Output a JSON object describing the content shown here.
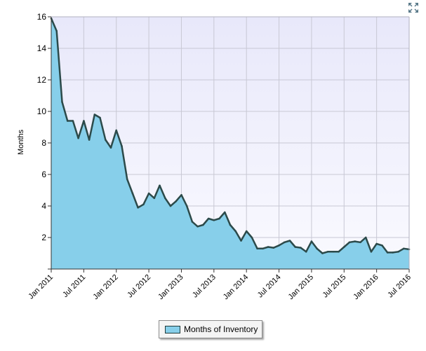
{
  "chart_data": {
    "type": "area",
    "title": "",
    "xlabel": "",
    "ylabel": "Months",
    "ylim": [
      0,
      16
    ],
    "yticks": [
      2,
      4,
      6,
      8,
      10,
      12,
      14,
      16
    ],
    "xticks": [
      "Jan 2011",
      "Jul 2011",
      "Jan 2012",
      "Jul 2012",
      "Jan 2013",
      "Jul 2013",
      "Jan 2014",
      "Jul 2014",
      "Jan 2015",
      "Jul 2015",
      "Jan 2016",
      "Jul 2016"
    ],
    "grid": true,
    "legend_position": "bottom-center",
    "series": [
      {
        "name": "Months of Inventory",
        "color": "#87cfea",
        "line_color": "#2c4a4a",
        "x": [
          "2011-01",
          "2011-02",
          "2011-03",
          "2011-04",
          "2011-05",
          "2011-06",
          "2011-07",
          "2011-08",
          "2011-09",
          "2011-10",
          "2011-11",
          "2011-12",
          "2012-01",
          "2012-02",
          "2012-03",
          "2012-04",
          "2012-05",
          "2012-06",
          "2012-07",
          "2012-08",
          "2012-09",
          "2012-10",
          "2012-11",
          "2012-12",
          "2013-01",
          "2013-02",
          "2013-03",
          "2013-04",
          "2013-05",
          "2013-06",
          "2013-07",
          "2013-08",
          "2013-09",
          "2013-10",
          "2013-11",
          "2013-12",
          "2014-01",
          "2014-02",
          "2014-03",
          "2014-04",
          "2014-05",
          "2014-06",
          "2014-07",
          "2014-08",
          "2014-09",
          "2014-10",
          "2014-11",
          "2014-12",
          "2015-01",
          "2015-02",
          "2015-03",
          "2015-04",
          "2015-05",
          "2015-06",
          "2015-07",
          "2015-08",
          "2015-09",
          "2015-10",
          "2015-11",
          "2015-12",
          "2016-01",
          "2016-02",
          "2016-03",
          "2016-04",
          "2016-05",
          "2016-06",
          "2016-07"
        ],
        "values": [
          15.9,
          15.1,
          10.6,
          9.4,
          9.4,
          8.3,
          9.4,
          8.2,
          9.8,
          9.6,
          8.2,
          7.7,
          8.8,
          7.8,
          5.7,
          4.8,
          3.9,
          4.1,
          4.8,
          4.5,
          5.3,
          4.5,
          4.0,
          4.3,
          4.7,
          4.0,
          3.0,
          2.7,
          2.8,
          3.2,
          3.1,
          3.2,
          3.6,
          2.8,
          2.4,
          1.8,
          2.4,
          2.0,
          1.3,
          1.3,
          1.4,
          1.35,
          1.5,
          1.7,
          1.8,
          1.4,
          1.35,
          1.1,
          1.75,
          1.3,
          1.0,
          1.1,
          1.1,
          1.1,
          1.4,
          1.7,
          1.75,
          1.7,
          2.0,
          1.1,
          1.6,
          1.5,
          1.05,
          1.05,
          1.1,
          1.3,
          1.25
        ]
      }
    ]
  },
  "legend": {
    "label": "Months of Inventory"
  },
  "toolbar": {
    "expand_icon": "expand-arrows-icon"
  }
}
